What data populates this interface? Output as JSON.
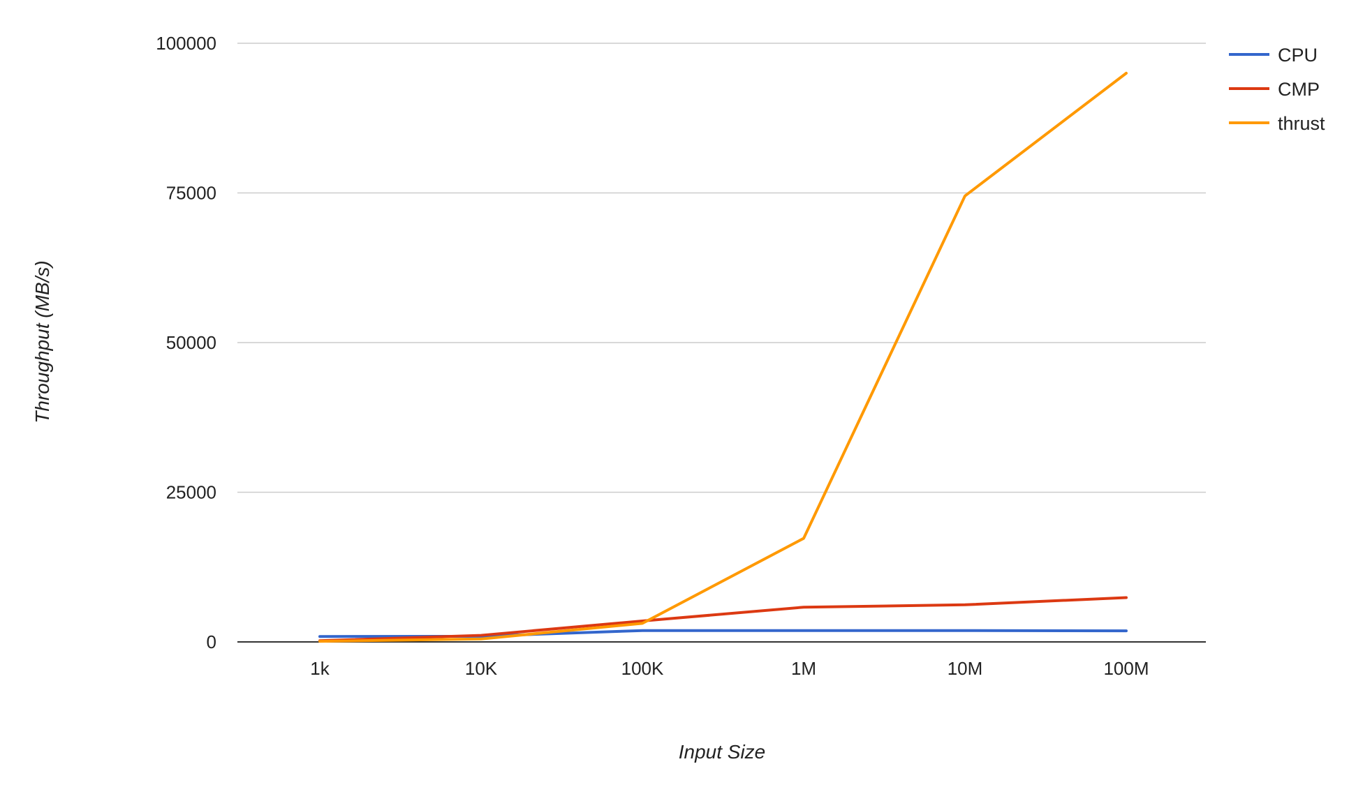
{
  "chart_data": {
    "type": "line",
    "title": "",
    "xlabel": "Input Size",
    "ylabel": "Throughput (MB/s)",
    "categories": [
      "1k",
      "10K",
      "100K",
      "1M",
      "10M",
      "100M"
    ],
    "ylim": [
      0,
      100000
    ],
    "yticks": [
      "0",
      "25000",
      "50000",
      "75000",
      "100000"
    ],
    "grid": true,
    "legend_position": "top-right",
    "series": [
      {
        "name": "CPU",
        "color": "#3366cc",
        "values": [
          900,
          950,
          1900,
          1900,
          1900,
          1850
        ]
      },
      {
        "name": "CMP",
        "color": "#dc3912",
        "values": [
          200,
          1100,
          3500,
          5800,
          6200,
          7400
        ]
      },
      {
        "name": "thrust",
        "color": "#ff9900",
        "values": [
          100,
          500,
          3100,
          17300,
          74500,
          95000
        ]
      }
    ]
  }
}
